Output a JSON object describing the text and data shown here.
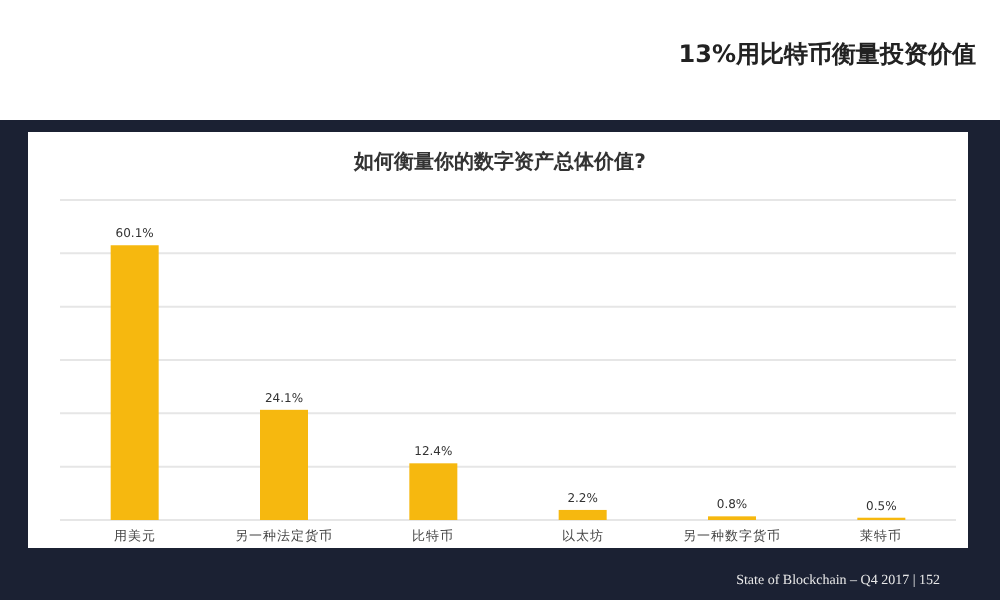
{
  "chart_data": {
    "type": "bar",
    "title": "如何衡量你的数字资产总体价值?",
    "categories": [
      "用美元",
      "另一种法定货币",
      "比特币",
      "以太坊",
      "另一种数字货币",
      "莱特币"
    ],
    "values": [
      60.1,
      24.1,
      12.4,
      2.2,
      0.8,
      0.5
    ],
    "value_labels": [
      "60.1%",
      "24.1%",
      "12.4%",
      "2.2%",
      "0.8%",
      "0.5%"
    ],
    "color": "#f6b80f",
    "ylim": [
      0,
      70
    ],
    "grid": "y",
    "tick_labels": "x",
    "annotations": [
      "13%用比特币衡量投资价值",
      "State of Blockchain – Q4 2017 | 152"
    ]
  }
}
